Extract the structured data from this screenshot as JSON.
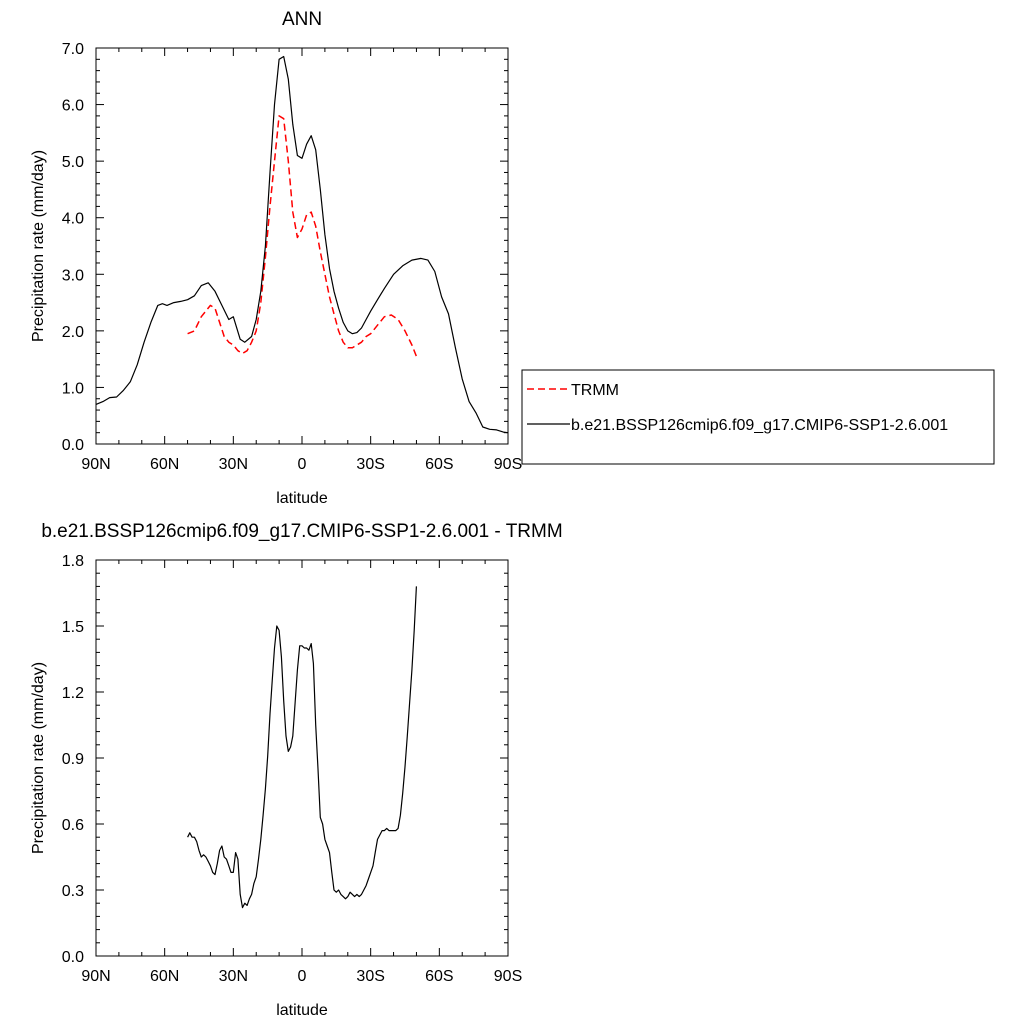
{
  "chart_data": [
    {
      "type": "line",
      "title": "ANN",
      "xlabel": "latitude",
      "ylabel": "Precipitation rate (mm/day)",
      "xlim": [
        90,
        -90
      ],
      "ylim": [
        0,
        7
      ],
      "x_ticks": [
        90,
        60,
        30,
        0,
        -30,
        -60,
        -90
      ],
      "x_tick_labels": [
        "90N",
        "60N",
        "30N",
        "0",
        "30S",
        "60S",
        "90S"
      ],
      "y_ticks": [
        0,
        1,
        2,
        3,
        4,
        5,
        6,
        7
      ],
      "y_tick_labels": [
        "0.0",
        "1.0",
        "2.0",
        "3.0",
        "4.0",
        "5.0",
        "6.0",
        "7.0"
      ],
      "legend_position": "right",
      "series": [
        {
          "name": "TRMM",
          "color": "#ff0000",
          "dash": "dashed",
          "x": [
            50,
            47,
            44,
            40,
            38,
            36,
            34,
            32,
            30,
            28,
            26,
            24,
            22,
            20,
            18,
            16,
            14,
            12,
            10,
            8,
            6,
            4,
            2,
            0,
            -2,
            -4,
            -6,
            -8,
            -10,
            -12,
            -14,
            -16,
            -18,
            -20,
            -22,
            -24,
            -26,
            -28,
            -30,
            -33,
            -36,
            -39,
            -42,
            -45,
            -48,
            -50
          ],
          "y": [
            1.95,
            2.0,
            2.25,
            2.45,
            2.4,
            2.15,
            1.9,
            1.8,
            1.75,
            1.65,
            1.6,
            1.65,
            1.8,
            2.0,
            2.5,
            3.3,
            4.2,
            5.0,
            5.8,
            5.75,
            5.0,
            4.1,
            3.65,
            3.8,
            4.05,
            4.1,
            3.85,
            3.4,
            3.0,
            2.6,
            2.3,
            2.0,
            1.8,
            1.7,
            1.7,
            1.75,
            1.8,
            1.9,
            1.95,
            2.1,
            2.25,
            2.28,
            2.2,
            2.0,
            1.75,
            1.55
          ]
        },
        {
          "name": "b.e21.BSSP126cmip6.f09_g17.CMIP6-SSP1-2.6.001",
          "color": "#000000",
          "dash": "solid",
          "x": [
            90,
            87,
            84,
            81,
            78,
            75,
            72,
            69,
            66,
            63,
            61,
            59,
            56,
            53,
            50,
            47,
            44,
            41,
            38,
            35,
            32,
            30,
            27,
            25,
            22,
            20,
            18,
            16,
            14,
            12,
            10,
            8,
            6,
            4,
            2,
            0,
            -2,
            -4,
            -6,
            -8,
            -10,
            -12,
            -14,
            -16,
            -18,
            -20,
            -22,
            -24,
            -26,
            -28,
            -30,
            -33,
            -36,
            -40,
            -44,
            -48,
            -52,
            -55,
            -58,
            -61,
            -64,
            -67,
            -70,
            -73,
            -76,
            -79,
            -82,
            -85,
            -88,
            -90
          ],
          "y": [
            0.7,
            0.75,
            0.82,
            0.83,
            0.95,
            1.1,
            1.4,
            1.8,
            2.15,
            2.45,
            2.48,
            2.45,
            2.5,
            2.52,
            2.55,
            2.62,
            2.8,
            2.85,
            2.7,
            2.45,
            2.2,
            2.25,
            1.85,
            1.8,
            1.9,
            2.2,
            2.7,
            3.5,
            4.8,
            6.0,
            6.8,
            6.85,
            6.45,
            5.65,
            5.1,
            5.05,
            5.3,
            5.45,
            5.2,
            4.5,
            3.7,
            3.1,
            2.7,
            2.4,
            2.15,
            2.0,
            1.95,
            1.97,
            2.05,
            2.2,
            2.35,
            2.55,
            2.75,
            3.0,
            3.15,
            3.25,
            3.28,
            3.25,
            3.05,
            2.6,
            2.3,
            1.7,
            1.15,
            0.75,
            0.55,
            0.3,
            0.26,
            0.25,
            0.21,
            0.2
          ]
        }
      ]
    },
    {
      "type": "line",
      "title": "b.e21.BSSP126cmip6.f09_g17.CMIP6-SSP1-2.6.001 - TRMM",
      "xlabel": "latitude",
      "ylabel": "Precipitation rate (mm/day)",
      "xlim": [
        90,
        -90
      ],
      "ylim": [
        0,
        1.8
      ],
      "x_ticks": [
        90,
        60,
        30,
        0,
        -30,
        -60,
        -90
      ],
      "x_tick_labels": [
        "90N",
        "60N",
        "30N",
        "0",
        "30S",
        "60S",
        "90S"
      ],
      "y_ticks": [
        0,
        0.3,
        0.6,
        0.9,
        1.2,
        1.5,
        1.8
      ],
      "y_tick_labels": [
        "0.0",
        "0.3",
        "0.6",
        "0.9",
        "1.2",
        "1.5",
        "1.8"
      ],
      "series": [
        {
          "color": "#000000",
          "dash": "solid",
          "x": [
            50,
            49,
            48,
            47,
            46,
            45,
            44,
            43,
            42,
            41,
            40,
            39,
            38,
            37,
            36,
            35,
            34,
            33,
            32,
            31,
            30,
            29,
            28,
            27,
            26,
            25,
            24,
            23,
            22,
            21,
            20,
            19,
            18,
            17,
            16,
            15,
            14,
            13,
            12,
            11,
            10,
            9,
            8,
            7,
            6,
            5,
            4,
            3,
            2,
            1,
            0,
            -1,
            -2,
            -3,
            -4,
            -5,
            -6,
            -7,
            -8,
            -9,
            -10,
            -11,
            -12,
            -13,
            -14,
            -15,
            -16,
            -17,
            -18,
            -19,
            -20,
            -21,
            -22,
            -23,
            -24,
            -25,
            -26,
            -27,
            -28,
            -29,
            -30,
            -31,
            -32,
            -33,
            -34,
            -35,
            -36,
            -37,
            -38,
            -39,
            -40,
            -41,
            -42,
            -43,
            -44,
            -45,
            -46,
            -47,
            -48,
            -49,
            -50
          ],
          "y": [
            0.54,
            0.56,
            0.54,
            0.54,
            0.52,
            0.48,
            0.45,
            0.46,
            0.45,
            0.43,
            0.41,
            0.38,
            0.37,
            0.42,
            0.48,
            0.5,
            0.45,
            0.44,
            0.41,
            0.38,
            0.38,
            0.47,
            0.44,
            0.28,
            0.22,
            0.24,
            0.23,
            0.26,
            0.28,
            0.33,
            0.36,
            0.44,
            0.53,
            0.64,
            0.76,
            0.91,
            1.1,
            1.25,
            1.4,
            1.5,
            1.48,
            1.36,
            1.16,
            1.0,
            0.93,
            0.95,
            1.0,
            1.15,
            1.3,
            1.41,
            1.41,
            1.4,
            1.4,
            1.39,
            1.42,
            1.33,
            1.05,
            0.85,
            0.63,
            0.6,
            0.53,
            0.5,
            0.47,
            0.38,
            0.3,
            0.29,
            0.3,
            0.28,
            0.27,
            0.26,
            0.27,
            0.29,
            0.28,
            0.27,
            0.28,
            0.27,
            0.28,
            0.3,
            0.32,
            0.35,
            0.38,
            0.41,
            0.47,
            0.53,
            0.55,
            0.57,
            0.57,
            0.58,
            0.57,
            0.57,
            0.57,
            0.57,
            0.58,
            0.64,
            0.74,
            0.86,
            1.0,
            1.15,
            1.3,
            1.48,
            1.68
          ]
        }
      ]
    }
  ]
}
